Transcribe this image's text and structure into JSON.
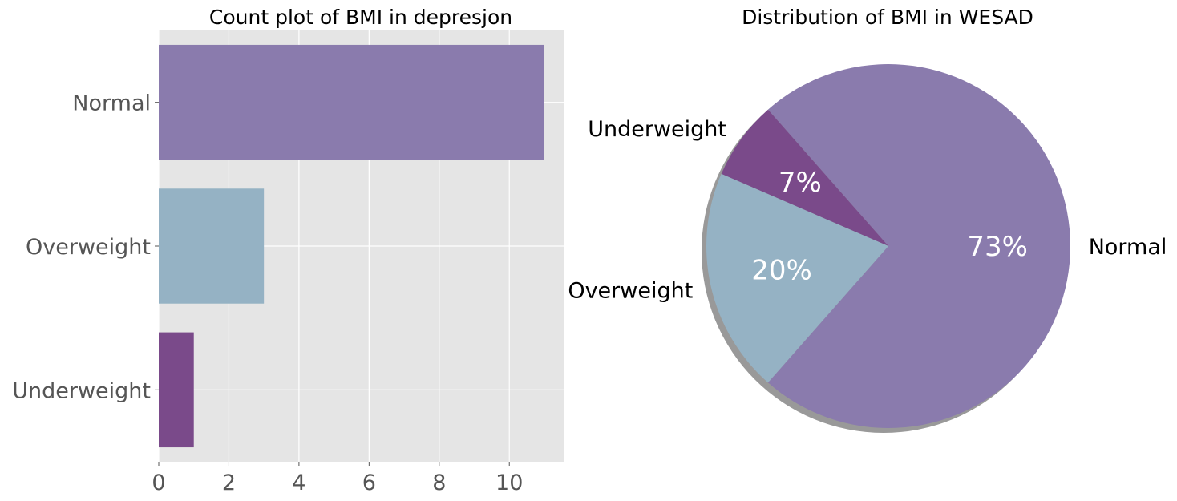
{
  "chart_data": [
    {
      "type": "bar",
      "orientation": "horizontal",
      "title": "Count plot of BMI in depresjon",
      "categories": [
        "Normal",
        "Overweight",
        "Underweight"
      ],
      "values": [
        11,
        3,
        1
      ],
      "colors": [
        "#8a7bad",
        "#95b2c4",
        "#7a4a8a"
      ],
      "xlabel": "",
      "ylabel": "",
      "xlim": [
        0,
        11.55
      ],
      "xticks": [
        "0",
        "2",
        "4",
        "6",
        "8",
        "10"
      ],
      "grid": true,
      "background": "#e5e5e5"
    },
    {
      "type": "pie",
      "title": "Distribution of BMI in WESAD",
      "labels": [
        "Normal",
        "Underweight",
        "Overweight"
      ],
      "values": [
        73,
        7,
        20
      ],
      "pct_labels": [
        "73%",
        "7%",
        "20%"
      ],
      "colors": [
        "#8a7bad",
        "#7a4a8a",
        "#95b2c4"
      ],
      "shadow": true
    }
  ]
}
